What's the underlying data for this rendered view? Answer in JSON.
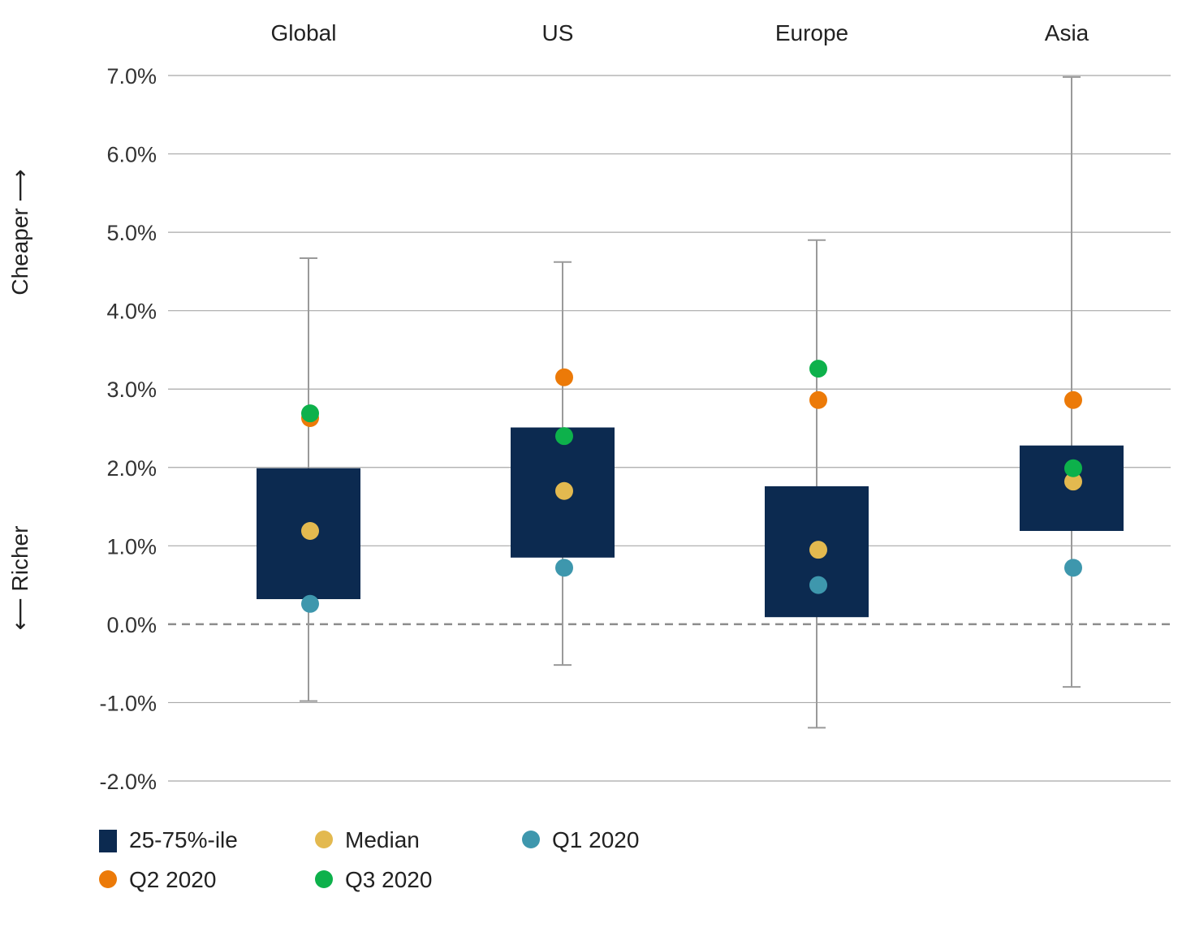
{
  "chart_data": {
    "type": "box",
    "title": "",
    "xlabel": "",
    "ylabel_top": "Cheaper ⟶",
    "ylabel_bottom": "⟵ Richer",
    "ylim": [
      -2.0,
      7.0
    ],
    "yticks": [
      7.0,
      6.0,
      5.0,
      4.0,
      3.0,
      2.0,
      1.0,
      0.0,
      -1.0,
      -2.0
    ],
    "ytick_labels": [
      "7.0%",
      "6.0%",
      "5.0%",
      "4.0%",
      "3.0%",
      "2.0%",
      "1.0%",
      "0.0%",
      "-1.0%",
      "-2.0%"
    ],
    "grid": true,
    "zero_line": "dashed",
    "categories": [
      "Global",
      "US",
      "Europe",
      "Asia"
    ],
    "boxes": [
      {
        "min": -0.98,
        "q1": 0.32,
        "q3": 1.99,
        "max": 4.67
      },
      {
        "min": -0.52,
        "q1": 0.85,
        "q3": 2.51,
        "max": 4.62
      },
      {
        "min": -1.32,
        "q1": 0.09,
        "q3": 1.76,
        "max": 4.9
      },
      {
        "min": -0.8,
        "q1": 1.19,
        "q3": 2.28,
        "max": 6.98
      }
    ],
    "series": [
      {
        "name": "Median",
        "color": "#e3b94f",
        "values": [
          1.19,
          1.7,
          0.95,
          1.82
        ]
      },
      {
        "name": "Q1 2020",
        "color": "#3e97ad",
        "values": [
          0.26,
          0.72,
          0.5,
          0.72
        ]
      },
      {
        "name": "Q2 2020",
        "color": "#ec7a08",
        "values": [
          2.63,
          3.15,
          2.86,
          2.86
        ]
      },
      {
        "name": "Q3 2020",
        "color": "#0db14b",
        "values": [
          2.69,
          2.4,
          3.26,
          1.99
        ]
      }
    ],
    "box_legend": "25-75%-ile",
    "box_color": "#0c2a50",
    "whisker_color": "#9a9a9a",
    "legend_position": "bottom-left",
    "legend": [
      {
        "label": "25-75%-ile",
        "shape": "square",
        "color": "#0c2a50"
      },
      {
        "label": "Median",
        "shape": "circle",
        "color": "#e3b94f"
      },
      {
        "label": "Q1 2020",
        "shape": "circle",
        "color": "#3e97ad"
      },
      {
        "label": "Q2 2020",
        "shape": "circle",
        "color": "#ec7a08"
      },
      {
        "label": "Q3 2020",
        "shape": "circle",
        "color": "#0db14b"
      }
    ]
  }
}
